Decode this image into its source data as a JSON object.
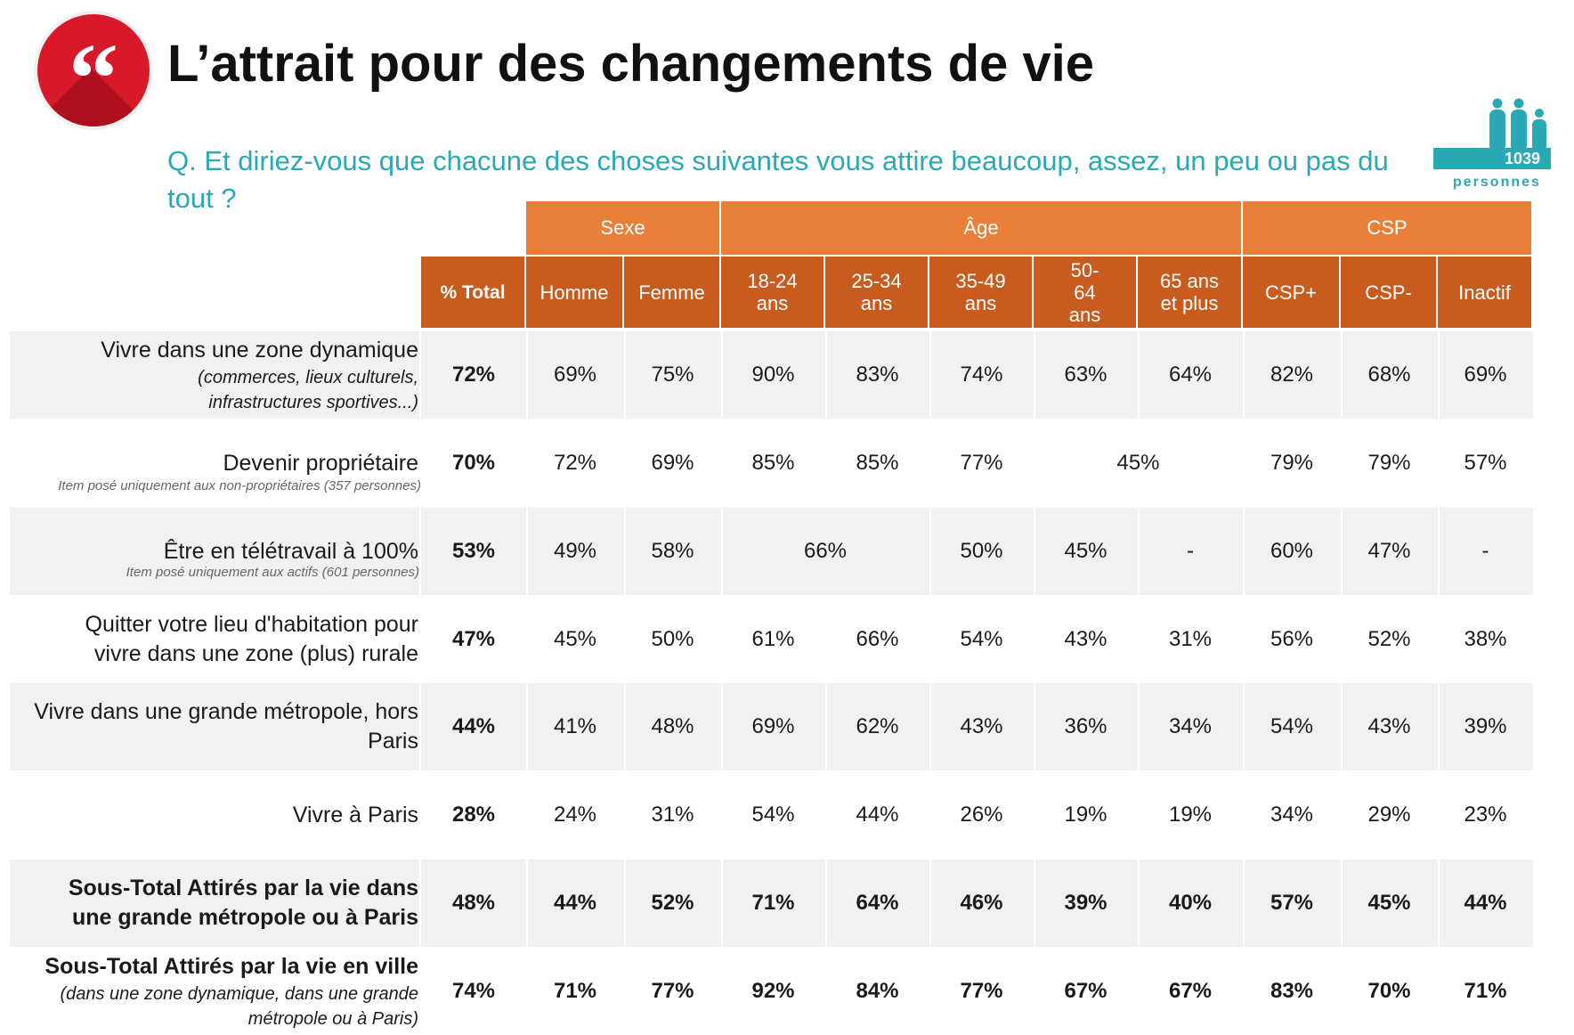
{
  "title": "L’attrait pour des changements de vie",
  "question": "Q. Et diriez-vous que chacune des choses suivantes vous attire beaucoup, assez, un peu ou pas du tout ?",
  "sample": {
    "count": "1039",
    "label": "personnes"
  },
  "groups": {
    "sexe": "Sexe",
    "age": "Âge",
    "csp": "CSP"
  },
  "headers": {
    "total": "% Total",
    "homme": "Homme",
    "femme": "Femme",
    "a1824": "18-24 ans",
    "a2534": "25-34 ans",
    "a3549": "35-49 ans",
    "a5064": "50- 64 ans",
    "a65": "65 ans et plus",
    "cspplus": "CSP+",
    "cspmoins": "CSP-",
    "inactif": "Inactif"
  },
  "rows": [
    {
      "label": "Vivre dans une zone dynamique",
      "sub": "(commerces, lieux culturels, infrastructures sportives...)",
      "total": "72%",
      "homme": "69%",
      "femme": "75%",
      "a1824": "90%",
      "a2534": "83%",
      "a3549": "74%",
      "a5064": "63%",
      "a65": "64%",
      "cspplus": "82%",
      "cspmoins": "68%",
      "inactif": "69%"
    },
    {
      "label": "Devenir propriétaire",
      "note": "Item posé uniquement aux non-propriétaires (357 personnes)",
      "total": "70%",
      "homme": "72%",
      "femme": "69%",
      "a1824": "85%",
      "a2534": "85%",
      "a3549": "77%",
      "a50plus": "45%",
      "cspplus": "79%",
      "cspmoins": "79%",
      "inactif": "57%"
    },
    {
      "label": "Être en télétravail à 100%",
      "note": "Item posé uniquement aux actifs (601 personnes)",
      "total": "53%",
      "homme": "49%",
      "femme": "58%",
      "a1834": "66%",
      "a3549": "50%",
      "a5064": "45%",
      "a65": "-",
      "cspplus": "60%",
      "cspmoins": "47%",
      "inactif": "-"
    },
    {
      "label": "Quitter votre lieu d'habitation pour vivre dans une zone (plus) rurale",
      "total": "47%",
      "homme": "45%",
      "femme": "50%",
      "a1824": "61%",
      "a2534": "66%",
      "a3549": "54%",
      "a5064": "43%",
      "a65": "31%",
      "cspplus": "56%",
      "cspmoins": "52%",
      "inactif": "38%"
    },
    {
      "label": "Vivre dans une grande métropole, hors Paris",
      "total": "44%",
      "homme": "41%",
      "femme": "48%",
      "a1824": "69%",
      "a2534": "62%",
      "a3549": "43%",
      "a5064": "36%",
      "a65": "34%",
      "cspplus": "54%",
      "cspmoins": "43%",
      "inactif": "39%"
    },
    {
      "label": "Vivre à Paris",
      "total": "28%",
      "homme": "24%",
      "femme": "31%",
      "a1824": "54%",
      "a2534": "44%",
      "a3549": "26%",
      "a5064": "19%",
      "a65": "19%",
      "cspplus": "34%",
      "cspmoins": "29%",
      "inactif": "23%"
    },
    {
      "label": "Sous-Total Attirés par la vie dans une grande métropole ou à Paris",
      "total": "48%",
      "homme": "44%",
      "femme": "52%",
      "a1824": "71%",
      "a2534": "64%",
      "a3549": "46%",
      "a5064": "39%",
      "a65": "40%",
      "cspplus": "57%",
      "cspmoins": "45%",
      "inactif": "44%"
    },
    {
      "label": "Sous-Total Attirés par la vie en ville",
      "sub": "(dans une zone dynamique, dans une grande métropole ou à Paris)",
      "total": "74%",
      "homme": "71%",
      "femme": "77%",
      "a1824": "92%",
      "a2534": "84%",
      "a3549": "77%",
      "a5064": "67%",
      "a65": "67%",
      "cspplus": "83%",
      "cspmoins": "70%",
      "inactif": "71%"
    }
  ]
}
